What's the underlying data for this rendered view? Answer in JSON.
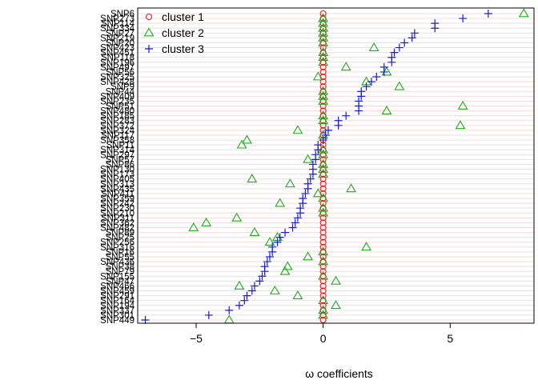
{
  "chart_data": {
    "type": "scatter",
    "xlabel": "ω coefficients",
    "ylabel": "",
    "xlim": [
      -7.3,
      8.3
    ],
    "x_ticks": [
      -5,
      0,
      5
    ],
    "grid": true,
    "legend_position": "top-left",
    "legend": [
      "cluster 1",
      "cluster 2",
      "cluster 3"
    ],
    "colors": {
      "cluster 1": "#e41a1c",
      "cluster 2": "#1fa81f",
      "cluster 3": "#1a1ad6"
    },
    "markers": {
      "cluster 1": "circle",
      "cluster 2": "triangle",
      "cluster 3": "plus"
    },
    "snps": [
      "SNP6",
      "SNP273",
      "SNP114",
      "SNP334",
      "SNP27",
      "SNP219",
      "SNP20",
      "SNP423",
      "SNP451",
      "SNP118",
      "SNP196",
      "SNP497",
      "SNP56",
      "SNP325",
      "SNP428",
      "SNP9",
      "SNP44",
      "SNP409",
      "SNP235",
      "SNP51",
      "SNP480",
      "SNP185",
      "SNP283",
      "SNP372",
      "SNP324",
      "SNP117",
      "SNP358",
      "SNP11",
      "SNP314",
      "SNP297",
      "SNP57",
      "SNP86",
      "SNP130",
      "SNP173",
      "SNP405",
      "SNP313",
      "SNP435",
      "SNP411",
      "SNP359",
      "SNP242",
      "SNP230",
      "SNP210",
      "SNP311",
      "SNP362",
      "SNP482",
      "SNP89",
      "SNP25",
      "SNP256",
      "SNP316",
      "SNP16",
      "SNP55",
      "SNP436",
      "SNP38",
      "SNP79",
      "SNP155",
      "SNP47",
      "SNP466",
      "SNP459",
      "SNP291",
      "SNP164",
      "SNP194",
      "SNP337",
      "SNP301",
      "SNP449"
    ],
    "series": [
      {
        "name": "cluster 1",
        "values": [
          0,
          0,
          0,
          0,
          0,
          0,
          0,
          0,
          0,
          0,
          0,
          0,
          0,
          0,
          0,
          0,
          0,
          0,
          0,
          0,
          0,
          0,
          0,
          0,
          0,
          0,
          0,
          0,
          0,
          0,
          0,
          0,
          0,
          0,
          0,
          0,
          0,
          0,
          0,
          0,
          0,
          0,
          0,
          0,
          0,
          0,
          0,
          0,
          0,
          0,
          0,
          0,
          0,
          0,
          0,
          0,
          0,
          0,
          0,
          0,
          0,
          0,
          0,
          0
        ]
      },
      {
        "name": "cluster 2",
        "values": [
          7.9,
          0,
          0,
          0,
          0,
          0,
          0,
          2.0,
          0,
          0,
          0,
          0.9,
          2.5,
          -0.2,
          1.7,
          3.0,
          0,
          0,
          0,
          5.5,
          2.5,
          0,
          0,
          5.4,
          -1.0,
          0,
          -3.0,
          -3.2,
          0,
          0,
          -0.6,
          0,
          0,
          0,
          -2.8,
          -1.3,
          1.1,
          -0.2,
          0,
          -1.7,
          0,
          0,
          -3.4,
          -4.6,
          -5.1,
          -2.7,
          -1.8,
          -2.1,
          1.7,
          0,
          -0.6,
          0,
          -1.4,
          -1.5,
          0,
          0.5,
          -3.3,
          -1.9,
          -1.0,
          0,
          0.5,
          0,
          0,
          -3.7
        ]
      },
      {
        "name": "cluster 3",
        "values": [
          6.5,
          5.5,
          4.4,
          4.4,
          3.6,
          3.5,
          3.2,
          3.0,
          2.8,
          2.7,
          2.7,
          2.4,
          2.4,
          2.1,
          1.9,
          1.7,
          1.5,
          1.5,
          1.4,
          1.4,
          1.4,
          0.9,
          0.6,
          0.6,
          0.2,
          0.1,
          0.0,
          -0.2,
          -0.2,
          -0.3,
          -0.3,
          -0.4,
          -0.4,
          -0.4,
          -0.5,
          -0.6,
          -0.6,
          -0.7,
          -0.8,
          -0.8,
          -0.9,
          -0.9,
          -1.0,
          -1.1,
          -1.2,
          -1.5,
          -1.7,
          -1.8,
          -2.0,
          -2.0,
          -2.1,
          -2.2,
          -2.3,
          -2.3,
          -2.4,
          -2.5,
          -2.7,
          -2.8,
          -3.0,
          -3.1,
          -3.3,
          -3.7,
          -4.5,
          -7.0
        ]
      }
    ]
  }
}
